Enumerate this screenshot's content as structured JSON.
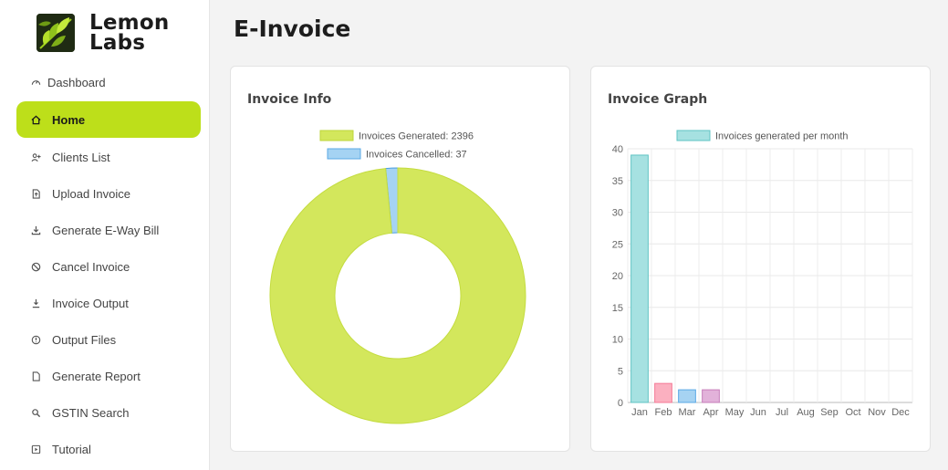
{
  "brand": {
    "line1": "Lemon",
    "line2": "Labs"
  },
  "sidebar": {
    "items": [
      {
        "label": "Dashboard",
        "icon": "gauge-icon"
      },
      {
        "label": "Home",
        "icon": "home-icon",
        "active": true
      },
      {
        "label": "Clients List",
        "icon": "user-add-icon"
      },
      {
        "label": "Upload Invoice",
        "icon": "file-upload-icon"
      },
      {
        "label": "Generate E-Way Bill",
        "icon": "download-icon"
      },
      {
        "label": "Cancel Invoice",
        "icon": "ban-icon"
      },
      {
        "label": "Invoice Output",
        "icon": "download-tray-icon"
      },
      {
        "label": "Output Files",
        "icon": "info-circle-icon"
      },
      {
        "label": "Generate Report",
        "icon": "file-icon"
      },
      {
        "label": "GSTIN Search",
        "icon": "search-icon"
      },
      {
        "label": "Tutorial",
        "icon": "play-icon"
      }
    ],
    "active_color": "#bddf1a"
  },
  "page": {
    "title": "E-Invoice"
  },
  "cards": {
    "info_title": "Invoice Info",
    "graph_title": "Invoice Graph"
  },
  "chart_data": [
    {
      "type": "pie",
      "variant": "doughnut",
      "legend_position": "top",
      "series": [
        {
          "name": "Invoices Generated",
          "value": 2396,
          "color": "#d3e75c"
        },
        {
          "name": "Invoices Cancelled",
          "value": 37,
          "color": "#a5d3f3"
        }
      ]
    },
    {
      "type": "bar",
      "legend_position": "top",
      "grid": true,
      "categories": [
        "Jan",
        "Feb",
        "Mar",
        "Apr",
        "May",
        "Jun",
        "Jul",
        "Aug",
        "Sep",
        "Oct",
        "Nov",
        "Dec"
      ],
      "series": [
        {
          "name": "Invoices generated per month",
          "values": [
            39,
            3,
            2,
            2,
            0,
            0,
            0,
            0,
            0,
            0,
            0,
            0
          ]
        }
      ],
      "bar_colors": [
        "#a6e1e1",
        "#fbb0c0",
        "#a6d3f2",
        "#e2b2da",
        "#a6e1e1",
        "#a6e1e1",
        "#a6e1e1",
        "#a6e1e1",
        "#a6e1e1",
        "#a6e1e1",
        "#a6e1e1",
        "#a6e1e1"
      ],
      "bar_borders": [
        "#5fc4c4",
        "#f57a96",
        "#5aa9e6",
        "#c77dba",
        "#5fc4c4",
        "#5fc4c4",
        "#5fc4c4",
        "#5fc4c4",
        "#5fc4c4",
        "#5fc4c4",
        "#5fc4c4",
        "#5fc4c4"
      ],
      "ylim": [
        0,
        40
      ],
      "yticks": [
        0,
        5,
        10,
        15,
        20,
        25,
        30,
        35,
        40
      ]
    }
  ]
}
